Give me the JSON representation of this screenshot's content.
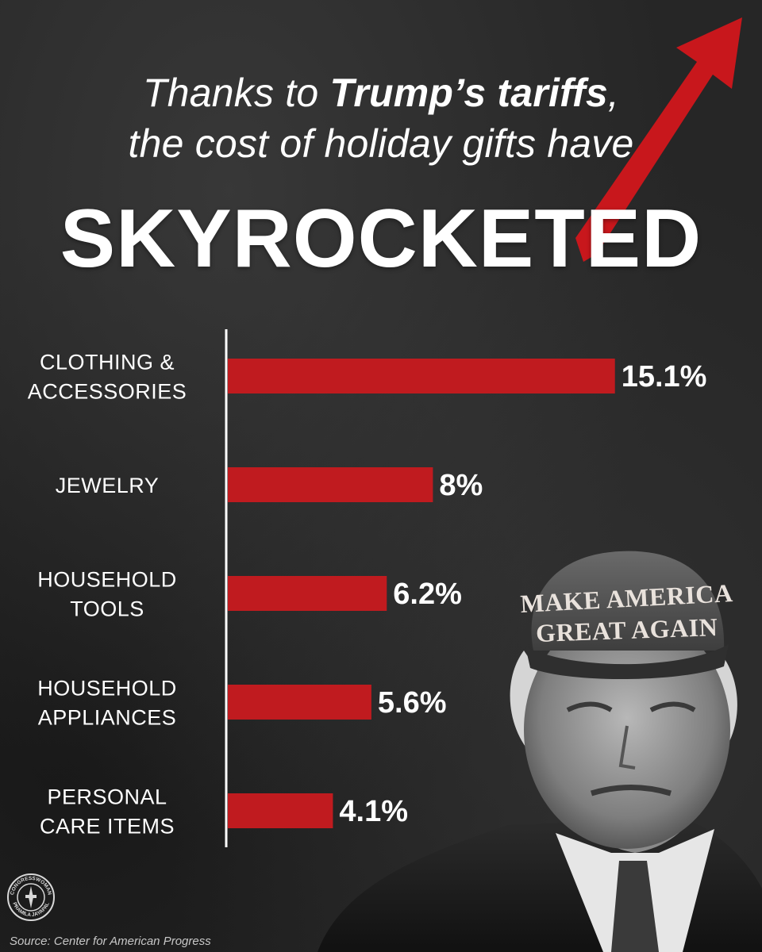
{
  "headline": {
    "line1_prefix": "Thanks to ",
    "line1_bold": "Trump’s tariffs",
    "line1_suffix": ",",
    "line2": "the cost of holiday gifts have",
    "big_word": "SKYROCKETED"
  },
  "chart_data": {
    "type": "bar",
    "orientation": "horizontal",
    "categories": [
      [
        "CLOTHING &",
        "ACCESSORIES"
      ],
      [
        "JEWELRY"
      ],
      [
        "HOUSEHOLD",
        "TOOLS"
      ],
      [
        "HOUSEHOLD",
        "APPLIANCES"
      ],
      [
        "PERSONAL",
        "CARE ITEMS"
      ]
    ],
    "values": [
      15.1,
      8,
      6.2,
      5.6,
      4.1
    ],
    "value_labels": [
      "15.1%",
      "8%",
      "6.2%",
      "5.6%",
      "4.1%"
    ],
    "grid": false,
    "legend": "none"
  },
  "cap_text": {
    "line1": "MAKE AMERICA",
    "line2": "GREAT AGAIN"
  },
  "seal": {
    "top_text": "CONGRESSWOMAN",
    "bottom_text": "PRAMILA JAYAPAL"
  },
  "source": "Source:  Center for American Progress",
  "colors": {
    "bar": "#c01b1f",
    "arrow": "#c8171c",
    "background": "#262626",
    "text": "#ffffff"
  }
}
